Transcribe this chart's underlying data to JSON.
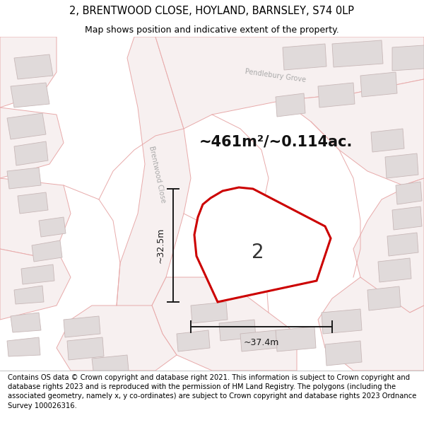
{
  "title": "2, BRENTWOOD CLOSE, HOYLAND, BARNSLEY, S74 0LP",
  "subtitle": "Map shows position and indicative extent of the property.",
  "footer": "Contains OS data © Crown copyright and database right 2021. This information is subject to Crown copyright and database rights 2023 and is reproduced with the permission of HM Land Registry. The polygons (including the associated geometry, namely x, y co-ordinates) are subject to Crown copyright and database rights 2023 Ordnance Survey 100026316.",
  "area_label": "~461m²/~0.114ac.",
  "number_label": "2",
  "dim_h": "~32.5m",
  "dim_w": "~37.4m",
  "map_bg": "#ffffff",
  "road_fill": "#f7f0f0",
  "road_edge": "#e8aaaa",
  "building_fill": "#e0dada",
  "building_edge": "#c8b8b8",
  "plot_fill": "#ffffff",
  "plot_edge": "#cc0000",
  "dim_color": "#1a1a1a",
  "street_label_color": "#aaaaaa",
  "title_fontsize": 10.5,
  "subtitle_fontsize": 9,
  "footer_fontsize": 7.2,
  "area_fontsize": 15,
  "number_fontsize": 20,
  "dim_fontsize": 9
}
